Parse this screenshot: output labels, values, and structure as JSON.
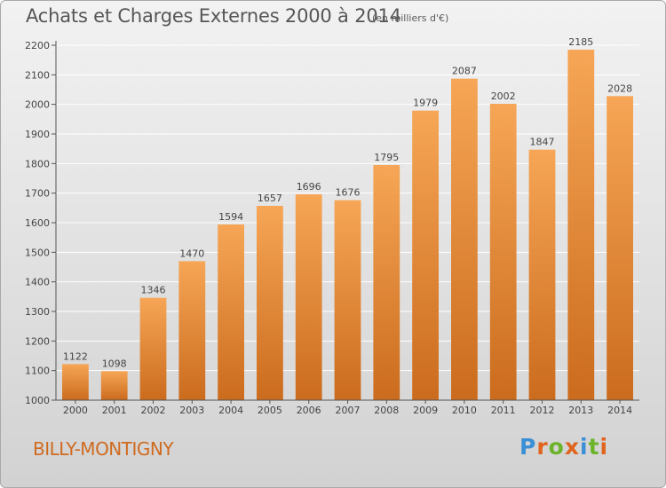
{
  "header": {
    "title": "Achats et Charges Externes 2000 à 2014",
    "unit": "(en milliers d'€)"
  },
  "footer": {
    "commune": "BILLY-MONTIGNY",
    "logo_text": "Proxiti",
    "logo_colors": [
      "#3b8fd6",
      "#e0641e",
      "#6bb42a",
      "#e0641e",
      "#3b8fd6",
      "#6bb42a",
      "#e0641e"
    ]
  },
  "colors": {
    "bar_top": "#f6a656",
    "bar_bottom": "#cb6b1d",
    "grid": "#ffffff",
    "axis_text": "#444444"
  },
  "chart_data": {
    "type": "bar",
    "title": "Achats et Charges Externes 2000 à 2014",
    "subtitle": "(en milliers d'€)",
    "categories": [
      "2000",
      "2001",
      "2002",
      "2003",
      "2004",
      "2005",
      "2006",
      "2007",
      "2008",
      "2009",
      "2010",
      "2011",
      "2012",
      "2013",
      "2014"
    ],
    "values": [
      1122,
      1098,
      1346,
      1470,
      1594,
      1657,
      1696,
      1676,
      1795,
      1979,
      2087,
      2002,
      1847,
      2185,
      2028
    ],
    "ylim": [
      1000,
      2200
    ],
    "yticks": [
      1000,
      1100,
      1200,
      1300,
      1400,
      1500,
      1600,
      1700,
      1800,
      1900,
      2000,
      2100,
      2200
    ],
    "grid": true,
    "data_labels": true
  }
}
